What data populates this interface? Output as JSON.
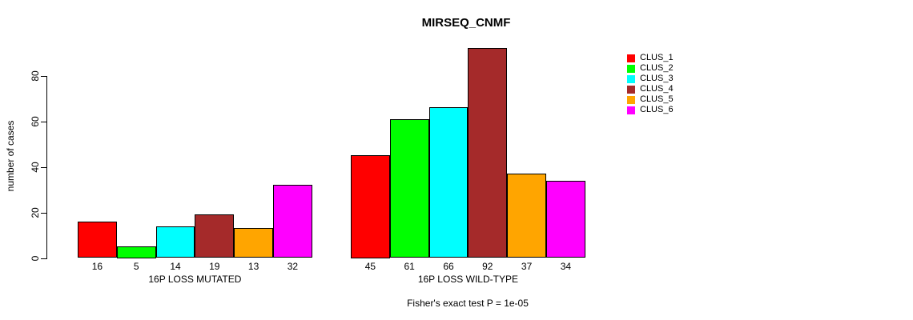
{
  "chart_data": {
    "type": "bar",
    "title": "MIRSEQ_CNMF",
    "ylabel": "number of cases",
    "xlabel": "",
    "ylim": [
      0,
      92
    ],
    "yticks": [
      0,
      20,
      40,
      60,
      80
    ],
    "grid": false,
    "legend_position": "right",
    "legend": [
      {
        "label": "CLUS_1",
        "color": "#FF0000"
      },
      {
        "label": "CLUS_2",
        "color": "#00FF00"
      },
      {
        "label": "CLUS_3",
        "color": "#00FFFF"
      },
      {
        "label": "CLUS_4",
        "color": "#A52A2A"
      },
      {
        "label": "CLUS_5",
        "color": "#FFA500"
      },
      {
        "label": "CLUS_6",
        "color": "#FF00FF"
      }
    ],
    "groups": [
      {
        "label": "16P LOSS MUTATED",
        "values": [
          16,
          5,
          14,
          19,
          13,
          32
        ]
      },
      {
        "label": "16P LOSS WILD-TYPE",
        "values": [
          45,
          61,
          66,
          92,
          37,
          34
        ]
      }
    ],
    "annotation": "Fisher's exact test P = 1e-05"
  }
}
